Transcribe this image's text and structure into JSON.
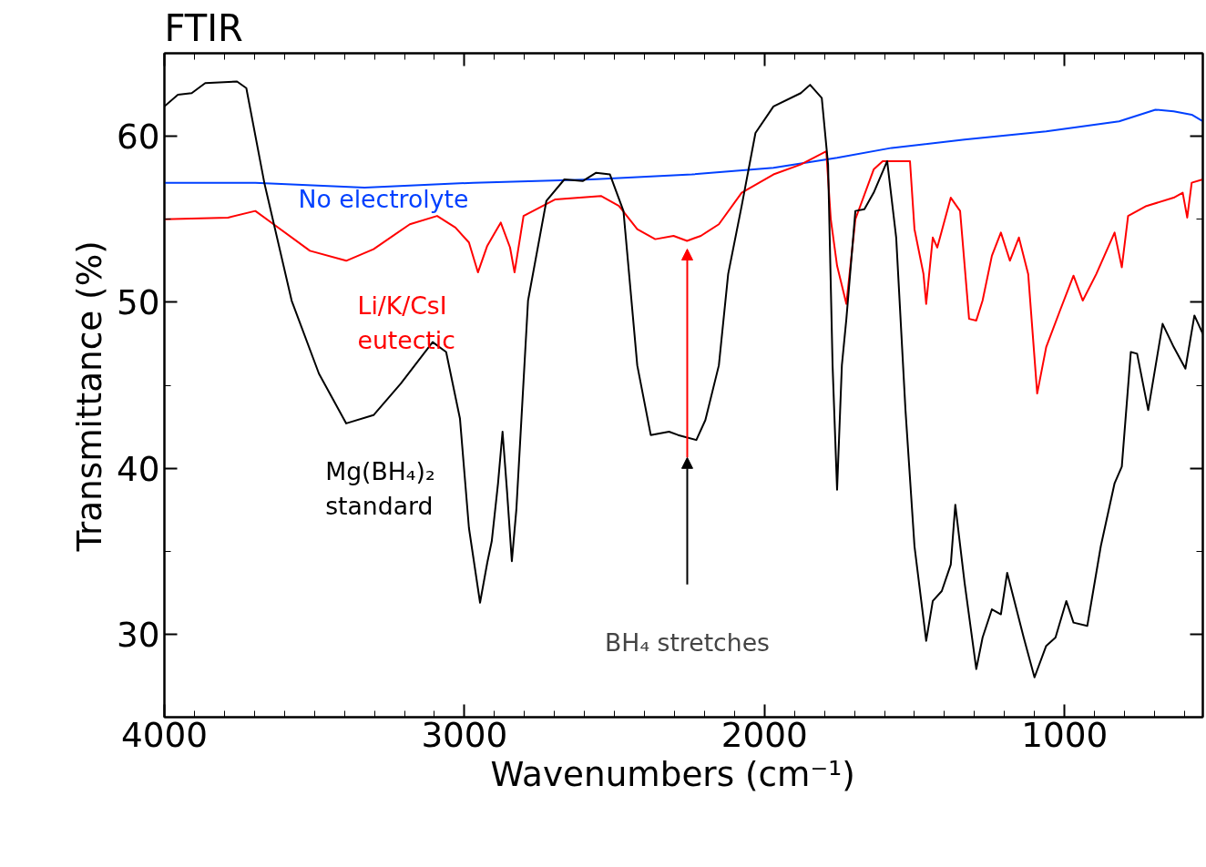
{
  "chart_data": {
    "type": "line",
    "title": "FTIR",
    "xlabel": "Wavenumbers   (cm⁻¹)",
    "ylabel": "Transmittance   (%)",
    "xlim": [
      4000,
      539
    ],
    "xticks": [
      4000,
      3000,
      2000,
      1000
    ],
    "ylim": [
      25,
      65
    ],
    "yticks": [
      30,
      40,
      50,
      60
    ],
    "grid": false,
    "legend": false,
    "line_style": "solid",
    "marker": "none",
    "annotations": [
      "BH₄ stretches"
    ],
    "series": [
      {
        "name": "No electrolyte",
        "color": "#0040ff",
        "x": [
          4000,
          3697,
          3333,
          2970,
          2576,
          2242,
          1970,
          1758,
          1576,
          1333,
          1061,
          818,
          697,
          636,
          576,
          539
        ],
        "values": [
          57.2,
          57.2,
          56.9,
          57.2,
          57.4,
          57.7,
          58.1,
          58.7,
          59.3,
          59.8,
          60.3,
          60.9,
          61.6,
          61.5,
          61.3,
          60.9
        ]
      },
      {
        "name": "Li/K/CsI eutectic",
        "color": "#ff0000",
        "x": [
          4000,
          3788,
          3697,
          3636,
          3515,
          3394,
          3303,
          3182,
          3091,
          3030,
          2985,
          2955,
          2924,
          2879,
          2848,
          2833,
          2803,
          2697,
          2545,
          2485,
          2424,
          2364,
          2303,
          2258,
          2212,
          2152,
          2076,
          1970,
          1879,
          1794,
          1779,
          1758,
          1727,
          1697,
          1636,
          1606,
          1515,
          1500,
          1470,
          1461,
          1439,
          1424,
          1379,
          1348,
          1318,
          1294,
          1273,
          1242,
          1212,
          1182,
          1152,
          1121,
          1091,
          1061,
          1015,
          970,
          939,
          894,
          833,
          809,
          788,
          727,
          636,
          606,
          591,
          576,
          539
        ],
        "values": [
          55.0,
          55.1,
          55.5,
          54.7,
          53.1,
          52.5,
          53.2,
          54.7,
          55.2,
          54.5,
          53.6,
          51.8,
          53.4,
          54.8,
          53.3,
          51.8,
          55.2,
          56.2,
          56.4,
          55.8,
          54.4,
          53.8,
          54.0,
          53.7,
          54.0,
          54.7,
          56.6,
          57.7,
          58.3,
          59.1,
          55.0,
          52.2,
          49.9,
          55.0,
          58.0,
          58.5,
          58.5,
          54.4,
          51.7,
          49.9,
          53.9,
          53.3,
          56.3,
          55.5,
          49.0,
          48.9,
          50.1,
          52.8,
          54.2,
          52.5,
          53.9,
          51.7,
          44.5,
          47.3,
          49.5,
          51.6,
          50.1,
          51.7,
          54.2,
          52.1,
          55.2,
          55.8,
          56.3,
          56.6,
          55.1,
          57.2,
          57.4
        ]
      },
      {
        "name": "Mg(BH₄)₂ standard",
        "color": "#000000",
        "x": [
          4000,
          3955,
          3909,
          3864,
          3758,
          3727,
          3667,
          3576,
          3485,
          3394,
          3303,
          3212,
          3106,
          3061,
          3015,
          2985,
          2948,
          2924,
          2909,
          2888,
          2873,
          2858,
          2842,
          2827,
          2788,
          2727,
          2667,
          2606,
          2561,
          2515,
          2470,
          2424,
          2379,
          2318,
          2288,
          2227,
          2197,
          2152,
          2121,
          2076,
          2030,
          1970,
          1879,
          1848,
          1809,
          1788,
          1773,
          1758,
          1742,
          1727,
          1697,
          1667,
          1636,
          1591,
          1561,
          1530,
          1500,
          1461,
          1439,
          1409,
          1379,
          1364,
          1333,
          1294,
          1273,
          1242,
          1212,
          1191,
          1167,
          1136,
          1100,
          1061,
          1030,
          994,
          970,
          924,
          879,
          833,
          809,
          779,
          758,
          721,
          673,
          636,
          597,
          567,
          539
        ],
        "values": [
          61.8,
          62.5,
          62.6,
          63.2,
          63.3,
          62.9,
          57.2,
          50.1,
          45.7,
          42.7,
          43.2,
          45.1,
          47.6,
          47.0,
          43.0,
          36.4,
          31.9,
          34.3,
          35.6,
          39.1,
          42.2,
          38.6,
          34.4,
          37.5,
          50.1,
          56.1,
          57.4,
          57.3,
          57.8,
          57.7,
          55.5,
          46.2,
          42.0,
          42.2,
          42.0,
          41.7,
          42.9,
          46.2,
          51.7,
          55.8,
          60.2,
          61.8,
          62.6,
          63.1,
          62.3,
          58.3,
          46.2,
          38.7,
          46.2,
          49.0,
          55.5,
          55.6,
          56.6,
          58.5,
          53.9,
          43.5,
          35.3,
          29.6,
          32.0,
          32.6,
          34.2,
          37.8,
          33.1,
          27.9,
          29.8,
          31.5,
          31.2,
          33.7,
          32.0,
          29.8,
          27.4,
          29.3,
          29.8,
          32.0,
          30.7,
          30.5,
          35.3,
          39.1,
          40.1,
          47.0,
          46.9,
          43.5,
          48.7,
          47.3,
          46.0,
          49.2,
          48.1
        ]
      }
    ]
  }
}
